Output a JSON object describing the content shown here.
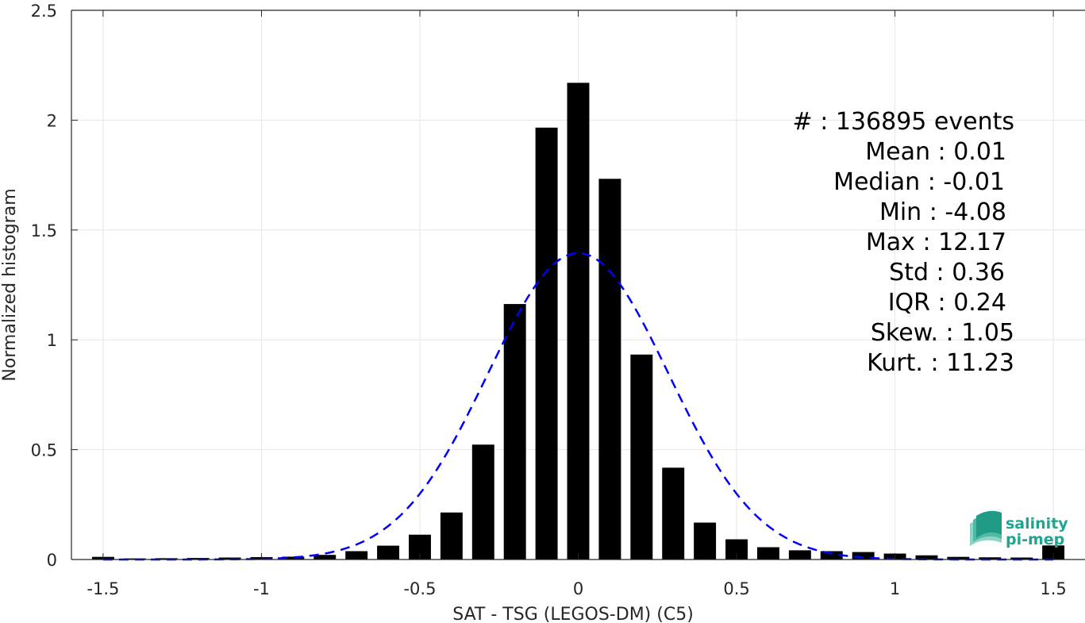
{
  "chart_data": {
    "type": "bar",
    "xlabel": "SAT - TSG (LEGOS-DM) (C5)",
    "ylabel": "Normalized histogram",
    "xlim": [
      -1.6,
      1.6
    ],
    "ylim": [
      0,
      2.5
    ],
    "xticks": [
      "-1.5",
      "-1",
      "-0.5",
      "0",
      "0.5",
      "1",
      "1.5"
    ],
    "yticks": [
      "0",
      "0.5",
      "1",
      "1.5",
      "2",
      "2.5"
    ],
    "grid": true,
    "bin_width": 0.1,
    "bars": {
      "x": [
        -1.5,
        -1.4,
        -1.3,
        -1.2,
        -1.1,
        -1.0,
        -0.9,
        -0.8,
        -0.7,
        -0.6,
        -0.5,
        -0.4,
        -0.3,
        -0.2,
        -0.1,
        0.0,
        0.1,
        0.2,
        0.3,
        0.4,
        0.5,
        0.6,
        0.7,
        0.8,
        0.9,
        1.0,
        1.1,
        1.2,
        1.3,
        1.4,
        1.5
      ],
      "values": [
        0.012,
        0.005,
        0.006,
        0.007,
        0.009,
        0.011,
        0.013,
        0.021,
        0.038,
        0.063,
        0.113,
        0.214,
        0.523,
        1.163,
        1.966,
        2.17,
        1.733,
        0.933,
        0.418,
        0.168,
        0.092,
        0.056,
        0.042,
        0.038,
        0.034,
        0.027,
        0.019,
        0.012,
        0.01,
        0.009,
        0.064
      ],
      "color": "#000000"
    },
    "fit": {
      "type": "gaussian",
      "color": "#0000ff",
      "style": "dashed",
      "mean": 0.0,
      "std": 0.285,
      "peak": 1.395,
      "x_range": [
        -1.5,
        1.5
      ]
    },
    "annotations": [
      "#  : 136895 events",
      "Mean : 0.01",
      "Median : -0.01",
      "Min : -4.08",
      "Max : 12.17",
      "Std : 0.36",
      "IQR : 0.24",
      "Skew. : 1.05",
      "Kurt. : 11.23"
    ],
    "logo": {
      "line1": "salinity",
      "line2": "pi-mep",
      "color": "#1fa58f"
    }
  }
}
